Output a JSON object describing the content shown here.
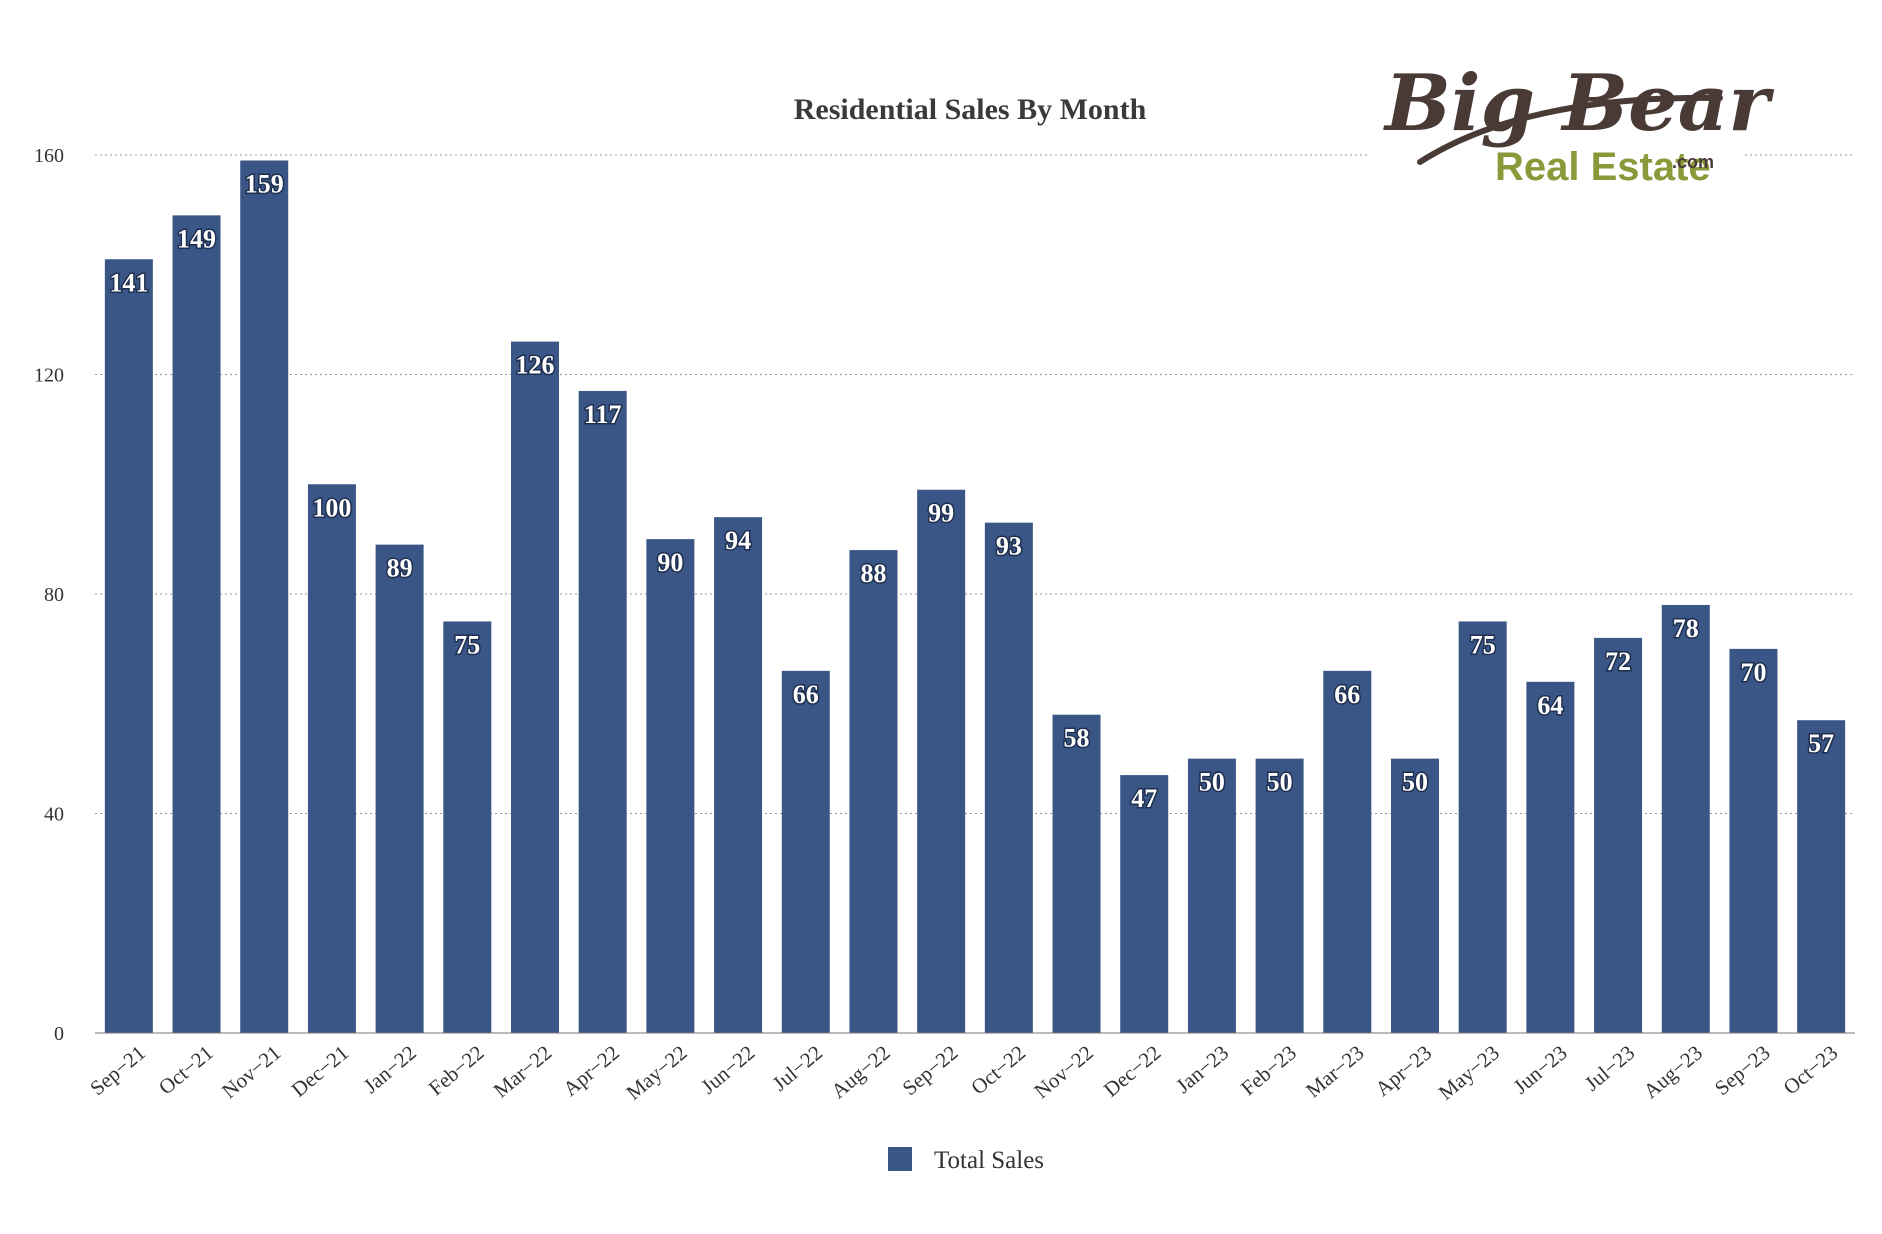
{
  "chart_data": {
    "type": "bar",
    "title": "Residential Sales By Month",
    "xlabel": "",
    "ylabel": "",
    "ylim": [
      0,
      160
    ],
    "yticks": [
      0,
      40,
      80,
      120,
      160
    ],
    "grid": true,
    "legend_position": "bottom",
    "categories": [
      "Sep−21",
      "Oct−21",
      "Nov−21",
      "Dec−21",
      "Jan−22",
      "Feb−22",
      "Mar−22",
      "Apr−22",
      "May−22",
      "Jun−22",
      "Jul−22",
      "Aug−22",
      "Sep−22",
      "Oct−22",
      "Nov−22",
      "Dec−22",
      "Jan−23",
      "Feb−23",
      "Mar−23",
      "Apr−23",
      "May−23",
      "Jun−23",
      "Jul−23",
      "Aug−23",
      "Sep−23",
      "Oct−23"
    ],
    "series": [
      {
        "name": "Total Sales",
        "color": "#3a5686",
        "values": [
          141,
          149,
          159,
          100,
          89,
          75,
          126,
          117,
          90,
          94,
          66,
          88,
          99,
          93,
          58,
          47,
          50,
          50,
          66,
          50,
          75,
          64,
          72,
          78,
          70,
          57
        ]
      }
    ]
  },
  "logo": {
    "script_text": "Big Bear",
    "sub_text": "Real Estate",
    "suffix_text": ".com"
  },
  "colors": {
    "bar": "#3a5686",
    "logo_brown": "#4a3a35",
    "logo_green": "#8a9a3a"
  }
}
